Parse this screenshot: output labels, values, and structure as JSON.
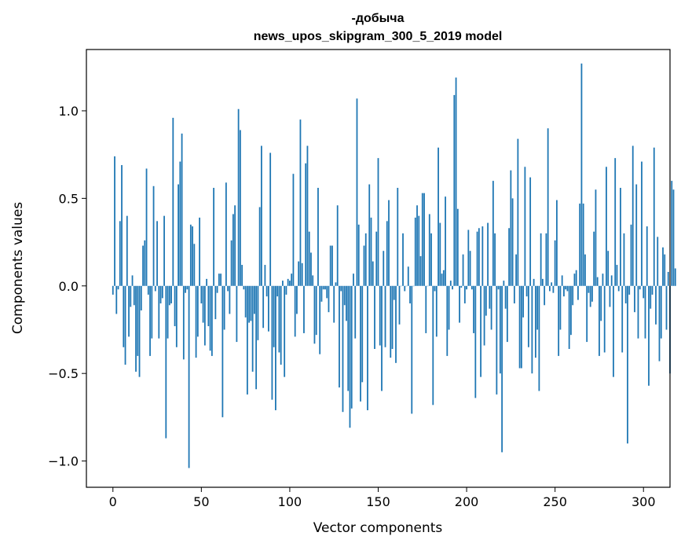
{
  "chart_data": {
    "type": "bar",
    "title_line1": "-добыча",
    "title_line2": "news_upos_skipgram_300_5_2019 model",
    "xlabel": "Vector components",
    "ylabel": "Components values",
    "xlim": [
      -15,
      315
    ],
    "ylim": [
      -1.15,
      1.35
    ],
    "x_ticks": [
      0,
      50,
      100,
      150,
      200,
      250,
      300
    ],
    "y_ticks": [
      -1.0,
      -0.5,
      0.0,
      0.5,
      1.0
    ],
    "bar_color": "#1f77b4",
    "values": [
      -0.05,
      0.74,
      -0.16,
      -0.02,
      0.37,
      0.69,
      -0.35,
      -0.45,
      0.4,
      -0.29,
      -0.12,
      0.06,
      -0.11,
      -0.49,
      -0.4,
      -0.52,
      -0.14,
      0.23,
      0.26,
      0.67,
      -0.05,
      -0.4,
      -0.3,
      0.57,
      -0.03,
      0.37,
      -0.3,
      -0.1,
      -0.07,
      0.4,
      -0.87,
      -0.3,
      -0.11,
      -0.1,
      0.96,
      -0.23,
      -0.35,
      0.58,
      0.71,
      0.87,
      -0.42,
      -0.04,
      -0.02,
      -1.04,
      0.35,
      0.34,
      0.24,
      -0.41,
      -0.29,
      0.39,
      -0.1,
      -0.21,
      -0.34,
      0.04,
      -0.23,
      -0.37,
      -0.4,
      0.56,
      -0.19,
      -0.04,
      0.07,
      0.07,
      -0.75,
      -0.25,
      0.59,
      -0.03,
      -0.16,
      0.26,
      0.41,
      0.46,
      -0.32,
      1.01,
      0.89,
      0.12,
      -0.02,
      -0.18,
      -0.62,
      -0.21,
      -0.2,
      -0.49,
      -0.16,
      -0.59,
      -0.31,
      0.45,
      0.8,
      -0.24,
      0.12,
      -0.06,
      -0.26,
      0.76,
      -0.65,
      -0.35,
      -0.71,
      -0.06,
      -0.38,
      -0.45,
      0.03,
      -0.52,
      -0.05,
      0.04,
      0.03,
      0.07,
      0.64,
      -0.29,
      -0.16,
      0.14,
      0.95,
      0.13,
      -0.27,
      0.7,
      0.8,
      0.31,
      0.19,
      0.06,
      -0.33,
      -0.28,
      0.56,
      -0.39,
      -0.09,
      -0.02,
      -0.02,
      -0.07,
      -0.15,
      0.23,
      0.23,
      -0.21,
      0.02,
      0.46,
      -0.58,
      -0.03,
      -0.72,
      -0.11,
      -0.2,
      -0.6,
      -0.81,
      -0.7,
      0.07,
      -0.3,
      1.07,
      0.35,
      -0.66,
      -0.55,
      0.23,
      0.3,
      -0.71,
      0.58,
      0.39,
      0.14,
      -0.36,
      0.31,
      0.73,
      -0.34,
      -0.6,
      0.2,
      -0.35,
      0.37,
      0.49,
      -0.41,
      -0.36,
      -0.08,
      -0.44,
      0.56,
      -0.22,
      0.0,
      0.3,
      -0.03,
      0.0,
      0.11,
      -0.1,
      -0.73,
      0.0,
      0.39,
      0.46,
      0.4,
      0.17,
      0.53,
      0.53,
      -0.27,
      0.0,
      0.41,
      0.3,
      -0.68,
      -0.03,
      -0.29,
      0.79,
      0.36,
      0.07,
      0.09,
      0.51,
      -0.4,
      -0.25,
      0.03,
      -0.02,
      1.09,
      1.19,
      0.44,
      -0.21,
      -0.01,
      0.18,
      -0.1,
      -0.02,
      0.32,
      0.2,
      -0.02,
      -0.27,
      -0.64,
      0.31,
      0.33,
      -0.52,
      0.34,
      -0.34,
      -0.17,
      0.36,
      -0.13,
      -0.25,
      0.6,
      0.3,
      -0.62,
      -0.02,
      -0.5,
      -0.95,
      0.03,
      -0.13,
      -0.32,
      0.33,
      0.66,
      0.5,
      -0.1,
      0.18,
      0.84,
      -0.47,
      -0.47,
      -0.18,
      0.68,
      -0.06,
      -0.35,
      0.62,
      -0.5,
      0.04,
      -0.41,
      -0.25,
      -0.6,
      0.3,
      0.04,
      -0.11,
      0.3,
      0.9,
      -0.03,
      0.02,
      -0.04,
      0.26,
      0.49,
      -0.4,
      -0.25,
      0.06,
      -0.06,
      -0.02,
      -0.03,
      -0.36,
      -0.28,
      -0.11,
      0.07,
      0.09,
      -0.08,
      0.47,
      1.27,
      0.47,
      0.18,
      -0.32,
      -0.04,
      -0.12,
      -0.09,
      0.31,
      0.55,
      0.05,
      -0.4,
      -0.2,
      0.07,
      -0.38,
      0.68,
      0.2,
      -0.12,
      0.06,
      -0.52,
      0.73,
      0.12,
      -0.03,
      0.56,
      -0.38,
      0.3,
      -0.1,
      -0.9,
      -0.05,
      0.35,
      0.8,
      -0.15,
      0.58,
      -0.3,
      -0.02,
      0.71,
      -0.07,
      -0.3,
      0.34,
      -0.57,
      -0.13,
      -0.05,
      0.79,
      -0.22,
      0.28,
      -0.43,
      -0.3,
      0.22,
      0.18,
      -0.25,
      0.08,
      -0.5,
      0.6,
      0.55,
      0.1
    ]
  }
}
